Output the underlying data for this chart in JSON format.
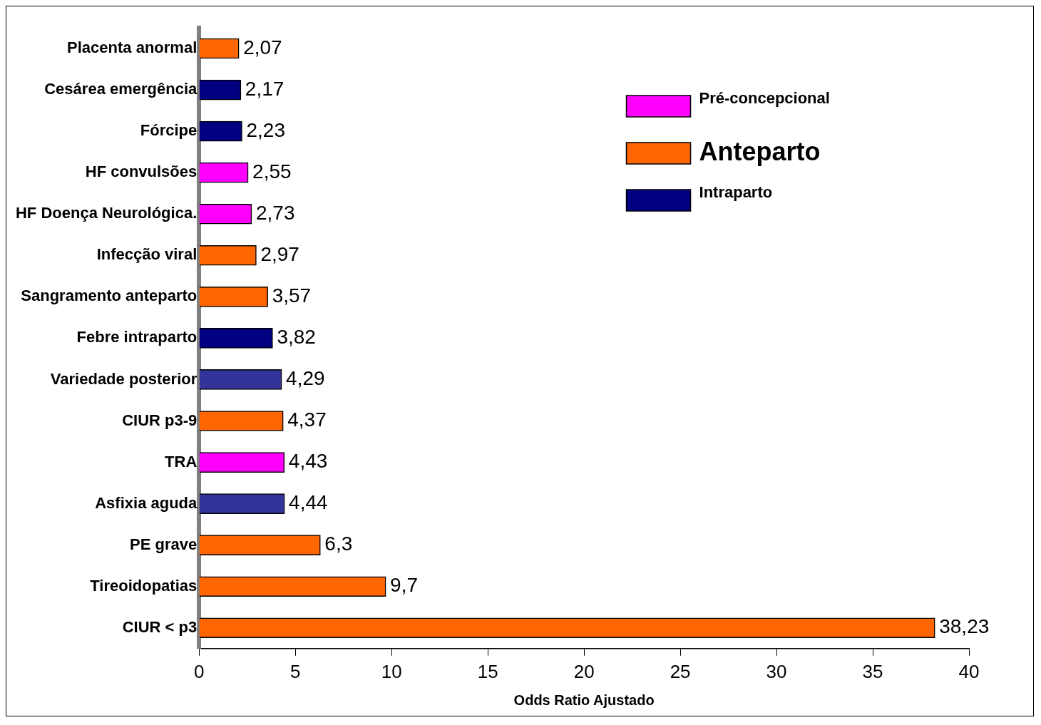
{
  "chart_data": {
    "type": "bar",
    "orientation": "horizontal",
    "xlabel": "Odds Ratio Ajustado",
    "categories": [
      "Placenta anormal",
      "Cesárea emergência",
      "Fórcipe",
      "HF convulsões",
      "HF Doença Neurológica.",
      "Infecção viral",
      "Sangramento anteparto",
      "Febre intraparto",
      "Variedade posterior",
      "CIUR p3-9",
      "TRA",
      "Asfixia aguda",
      "PE grave",
      "Tireoidopatias",
      "CIUR < p3"
    ],
    "series": [
      {
        "name": "Pré-concepcional",
        "color": "#ff00ff",
        "values": [
          null,
          null,
          null,
          2.55,
          2.73,
          null,
          null,
          null,
          null,
          null,
          4.43,
          null,
          null,
          null,
          null
        ],
        "value_labels": [
          null,
          null,
          null,
          "2,55",
          "2,73",
          null,
          null,
          null,
          null,
          null,
          "4,43",
          null,
          null,
          null,
          null
        ]
      },
      {
        "name": "Anteparto",
        "color": "#ff6600",
        "values": [
          2.07,
          null,
          null,
          null,
          null,
          2.97,
          3.57,
          null,
          null,
          4.37,
          null,
          null,
          6.3,
          9.7,
          38.23
        ],
        "value_labels": [
          "2,07",
          null,
          null,
          null,
          null,
          "2,97",
          "3,57",
          null,
          null,
          "4,37",
          null,
          null,
          "6,3",
          "9,7",
          "38,23"
        ]
      },
      {
        "name": "Intraparto",
        "color": "#000080",
        "colors": [
          null,
          "#000080",
          "#000080",
          null,
          null,
          null,
          null,
          "#000080",
          "#333399",
          null,
          null,
          "#333399",
          null,
          null,
          null
        ],
        "values": [
          null,
          2.17,
          2.23,
          null,
          null,
          null,
          null,
          3.82,
          4.29,
          null,
          null,
          4.44,
          null,
          null,
          null
        ],
        "value_labels": [
          null,
          "2,17",
          "2,23",
          null,
          null,
          null,
          null,
          "3,82",
          "4,29",
          null,
          null,
          "4,44",
          null,
          null,
          null
        ]
      }
    ],
    "xlim": [
      0,
      40
    ],
    "xticks": [
      0,
      5,
      10,
      15,
      20,
      25,
      30,
      35,
      40
    ],
    "grid": false,
    "legend": "top right"
  }
}
